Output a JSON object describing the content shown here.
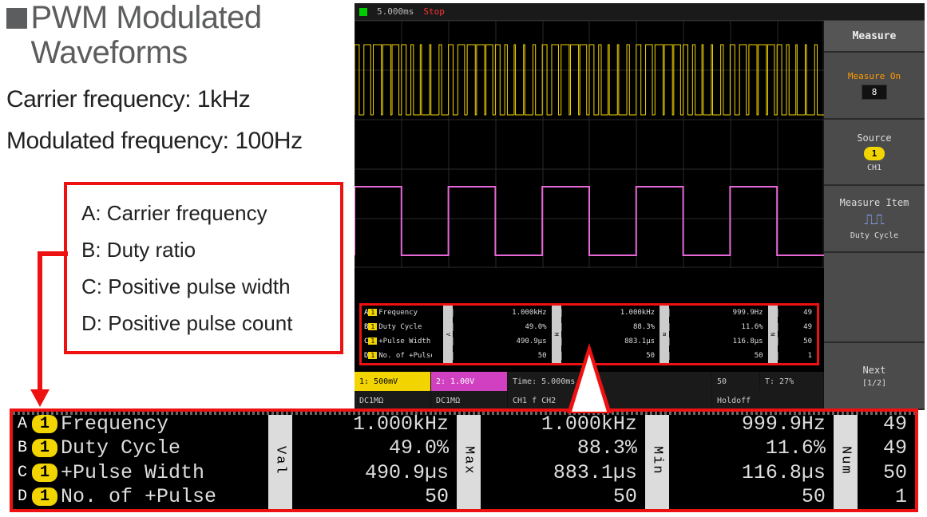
{
  "title": "PWM Modulated\nWaveforms",
  "spec1": "Carrier frequency: 1kHz",
  "spec2": "Modulated frequency: 100Hz",
  "legend": {
    "a": "A: Carrier frequency",
    "b": "B: Duty ratio",
    "c": "C: Positive pulse width",
    "d": "D: Positive pulse count"
  },
  "colors": {
    "red": "#ee1111",
    "ch1": "#f2d400",
    "ch2": "#d040c0",
    "grid": "#333333",
    "title_gray": "#5c5d5e"
  },
  "scope": {
    "topbar": {
      "timebase": "5.000ms",
      "stopped": "Stop"
    },
    "menu": {
      "title": "Measure",
      "m1": "Measure On",
      "m1v": "8",
      "m2": "Source",
      "m2_ch": "1",
      "m2_sub": "CH1",
      "m3": "Measure Item",
      "m3_sub": "Duty Cycle",
      "m4": "Next",
      "m4_sub": "[1/2]"
    },
    "status": {
      "ch1": "1: 500mV",
      "ch2": "2: 1.00V",
      "time": "Time:",
      "tdiv": "5.000ms",
      "tpos": "50",
      "tmode": "T: 27%",
      "dc1": "DC1MΩ",
      "dc2": "DC1MΩ",
      "trig": "CH1 f CH2",
      "hold": "Holdoff"
    },
    "measure_rows": [
      "A",
      "B",
      "C",
      "D"
    ],
    "measure_names": [
      "Frequency",
      "Duty Cycle",
      "+Pulse Width",
      "No. of +Pulse"
    ],
    "measure_ch": "1",
    "col_headers": [
      "Val",
      "Max",
      "Min",
      "Num"
    ],
    "columns": {
      "val": [
        "1.000kHz",
        "49.0%",
        "490.9µs",
        "50"
      ],
      "max": [
        "1.000kHz",
        "88.3%",
        "883.1µs",
        "50"
      ],
      "min": [
        "999.9Hz",
        "11.6%",
        "116.8µs",
        "50"
      ],
      "num": [
        "49",
        "49",
        "50",
        "1"
      ]
    },
    "mini": {
      "val": [
        "1.000kHz",
        "49.0%",
        "490.9µs",
        "50"
      ],
      "max": [
        "1.000kHz",
        "88.3%",
        "883.1µs",
        "50"
      ],
      "min": [
        "999.9Hz",
        "11.6%",
        "116.8µs",
        "50"
      ],
      "num": [
        "49",
        "49",
        "50",
        "1"
      ]
    }
  }
}
